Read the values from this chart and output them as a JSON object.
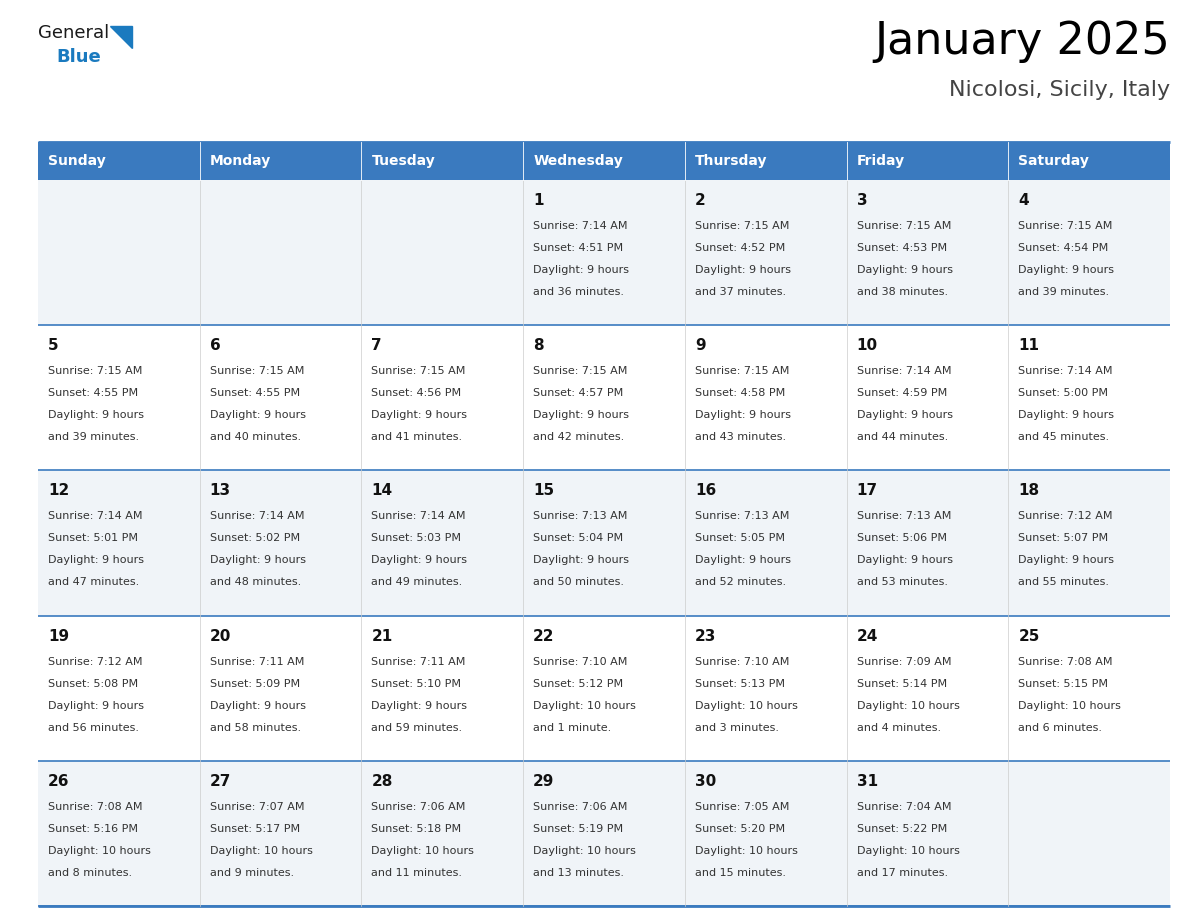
{
  "title": "January 2025",
  "subtitle": "Nicolosi, Sicily, Italy",
  "header_color": "#3a7abf",
  "header_text_color": "#ffffff",
  "cell_bg_color": "#ffffff",
  "alt_cell_bg_color": "#f0f4f8",
  "border_color": "#3a7abf",
  "day_names": [
    "Sunday",
    "Monday",
    "Tuesday",
    "Wednesday",
    "Thursday",
    "Friday",
    "Saturday"
  ],
  "weeks": [
    [
      {
        "day": "",
        "sunrise": "",
        "sunset": "",
        "daylight": ""
      },
      {
        "day": "",
        "sunrise": "",
        "sunset": "",
        "daylight": ""
      },
      {
        "day": "",
        "sunrise": "",
        "sunset": "",
        "daylight": ""
      },
      {
        "day": "1",
        "sunrise": "7:14 AM",
        "sunset": "4:51 PM",
        "daylight_line1": "Daylight: 9 hours",
        "daylight_line2": "and 36 minutes."
      },
      {
        "day": "2",
        "sunrise": "7:15 AM",
        "sunset": "4:52 PM",
        "daylight_line1": "Daylight: 9 hours",
        "daylight_line2": "and 37 minutes."
      },
      {
        "day": "3",
        "sunrise": "7:15 AM",
        "sunset": "4:53 PM",
        "daylight_line1": "Daylight: 9 hours",
        "daylight_line2": "and 38 minutes."
      },
      {
        "day": "4",
        "sunrise": "7:15 AM",
        "sunset": "4:54 PM",
        "daylight_line1": "Daylight: 9 hours",
        "daylight_line2": "and 39 minutes."
      }
    ],
    [
      {
        "day": "5",
        "sunrise": "7:15 AM",
        "sunset": "4:55 PM",
        "daylight_line1": "Daylight: 9 hours",
        "daylight_line2": "and 39 minutes."
      },
      {
        "day": "6",
        "sunrise": "7:15 AM",
        "sunset": "4:55 PM",
        "daylight_line1": "Daylight: 9 hours",
        "daylight_line2": "and 40 minutes."
      },
      {
        "day": "7",
        "sunrise": "7:15 AM",
        "sunset": "4:56 PM",
        "daylight_line1": "Daylight: 9 hours",
        "daylight_line2": "and 41 minutes."
      },
      {
        "day": "8",
        "sunrise": "7:15 AM",
        "sunset": "4:57 PM",
        "daylight_line1": "Daylight: 9 hours",
        "daylight_line2": "and 42 minutes."
      },
      {
        "day": "9",
        "sunrise": "7:15 AM",
        "sunset": "4:58 PM",
        "daylight_line1": "Daylight: 9 hours",
        "daylight_line2": "and 43 minutes."
      },
      {
        "day": "10",
        "sunrise": "7:14 AM",
        "sunset": "4:59 PM",
        "daylight_line1": "Daylight: 9 hours",
        "daylight_line2": "and 44 minutes."
      },
      {
        "day": "11",
        "sunrise": "7:14 AM",
        "sunset": "5:00 PM",
        "daylight_line1": "Daylight: 9 hours",
        "daylight_line2": "and 45 minutes."
      }
    ],
    [
      {
        "day": "12",
        "sunrise": "7:14 AM",
        "sunset": "5:01 PM",
        "daylight_line1": "Daylight: 9 hours",
        "daylight_line2": "and 47 minutes."
      },
      {
        "day": "13",
        "sunrise": "7:14 AM",
        "sunset": "5:02 PM",
        "daylight_line1": "Daylight: 9 hours",
        "daylight_line2": "and 48 minutes."
      },
      {
        "day": "14",
        "sunrise": "7:14 AM",
        "sunset": "5:03 PM",
        "daylight_line1": "Daylight: 9 hours",
        "daylight_line2": "and 49 minutes."
      },
      {
        "day": "15",
        "sunrise": "7:13 AM",
        "sunset": "5:04 PM",
        "daylight_line1": "Daylight: 9 hours",
        "daylight_line2": "and 50 minutes."
      },
      {
        "day": "16",
        "sunrise": "7:13 AM",
        "sunset": "5:05 PM",
        "daylight_line1": "Daylight: 9 hours",
        "daylight_line2": "and 52 minutes."
      },
      {
        "day": "17",
        "sunrise": "7:13 AM",
        "sunset": "5:06 PM",
        "daylight_line1": "Daylight: 9 hours",
        "daylight_line2": "and 53 minutes."
      },
      {
        "day": "18",
        "sunrise": "7:12 AM",
        "sunset": "5:07 PM",
        "daylight_line1": "Daylight: 9 hours",
        "daylight_line2": "and 55 minutes."
      }
    ],
    [
      {
        "day": "19",
        "sunrise": "7:12 AM",
        "sunset": "5:08 PM",
        "daylight_line1": "Daylight: 9 hours",
        "daylight_line2": "and 56 minutes."
      },
      {
        "day": "20",
        "sunrise": "7:11 AM",
        "sunset": "5:09 PM",
        "daylight_line1": "Daylight: 9 hours",
        "daylight_line2": "and 58 minutes."
      },
      {
        "day": "21",
        "sunrise": "7:11 AM",
        "sunset": "5:10 PM",
        "daylight_line1": "Daylight: 9 hours",
        "daylight_line2": "and 59 minutes."
      },
      {
        "day": "22",
        "sunrise": "7:10 AM",
        "sunset": "5:12 PM",
        "daylight_line1": "Daylight: 10 hours",
        "daylight_line2": "and 1 minute."
      },
      {
        "day": "23",
        "sunrise": "7:10 AM",
        "sunset": "5:13 PM",
        "daylight_line1": "Daylight: 10 hours",
        "daylight_line2": "and 3 minutes."
      },
      {
        "day": "24",
        "sunrise": "7:09 AM",
        "sunset": "5:14 PM",
        "daylight_line1": "Daylight: 10 hours",
        "daylight_line2": "and 4 minutes."
      },
      {
        "day": "25",
        "sunrise": "7:08 AM",
        "sunset": "5:15 PM",
        "daylight_line1": "Daylight: 10 hours",
        "daylight_line2": "and 6 minutes."
      }
    ],
    [
      {
        "day": "26",
        "sunrise": "7:08 AM",
        "sunset": "5:16 PM",
        "daylight_line1": "Daylight: 10 hours",
        "daylight_line2": "and 8 minutes."
      },
      {
        "day": "27",
        "sunrise": "7:07 AM",
        "sunset": "5:17 PM",
        "daylight_line1": "Daylight: 10 hours",
        "daylight_line2": "and 9 minutes."
      },
      {
        "day": "28",
        "sunrise": "7:06 AM",
        "sunset": "5:18 PM",
        "daylight_line1": "Daylight: 10 hours",
        "daylight_line2": "and 11 minutes."
      },
      {
        "day": "29",
        "sunrise": "7:06 AM",
        "sunset": "5:19 PM",
        "daylight_line1": "Daylight: 10 hours",
        "daylight_line2": "and 13 minutes."
      },
      {
        "day": "30",
        "sunrise": "7:05 AM",
        "sunset": "5:20 PM",
        "daylight_line1": "Daylight: 10 hours",
        "daylight_line2": "and 15 minutes."
      },
      {
        "day": "31",
        "sunrise": "7:04 AM",
        "sunset": "5:22 PM",
        "daylight_line1": "Daylight: 10 hours",
        "daylight_line2": "and 17 minutes."
      },
      {
        "day": "",
        "sunrise": "",
        "sunset": "",
        "daylight_line1": "",
        "daylight_line2": ""
      }
    ]
  ],
  "logo_general_color": "#1a1a1a",
  "logo_blue_color": "#1a7abf",
  "triangle_color": "#1a7abf",
  "title_fontsize": 32,
  "subtitle_fontsize": 16,
  "header_fontsize": 10,
  "day_num_fontsize": 11,
  "cell_text_fontsize": 8
}
